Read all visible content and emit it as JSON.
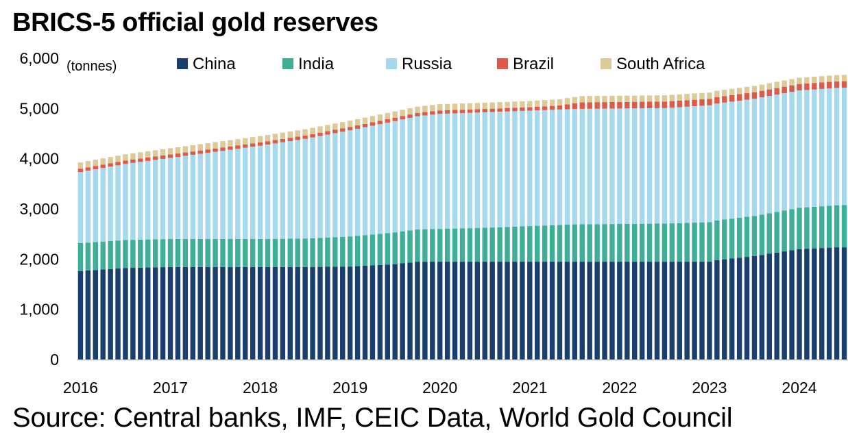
{
  "title": "BRICS-5 official gold reserves",
  "source": "Source: Central banks, IMF, CEIC Data, World Gold Council",
  "chart_data": {
    "type": "bar",
    "stacked": true,
    "unit_label": "(tonnes)",
    "ylim": [
      0,
      6000
    ],
    "y_ticks": [
      {
        "value": 0,
        "label": "0"
      },
      {
        "value": 1000,
        "label": "1,000"
      },
      {
        "value": 2000,
        "label": "2,000"
      },
      {
        "value": 3000,
        "label": "3,000"
      },
      {
        "value": 4000,
        "label": "4,000"
      },
      {
        "value": 5000,
        "label": "5,000"
      },
      {
        "value": 6000,
        "label": "6,000"
      }
    ],
    "x_ticks": [
      "2016",
      "2017",
      "2018",
      "2019",
      "2020",
      "2021",
      "2022",
      "2023",
      "2024"
    ],
    "grid": false,
    "legend_position": "top",
    "periods": 103,
    "series": [
      {
        "name": "China",
        "color": "#1a3e6e",
        "anchors": [
          [
            0,
            1762
          ],
          [
            6,
            1823
          ],
          [
            12,
            1843
          ],
          [
            30,
            1843
          ],
          [
            36,
            1852
          ],
          [
            42,
            1900
          ],
          [
            45,
            1948
          ],
          [
            84,
            1948
          ],
          [
            85,
            1980
          ],
          [
            90,
            2060
          ],
          [
            96,
            2200
          ],
          [
            101,
            2235
          ],
          [
            102,
            2235
          ]
        ]
      },
      {
        "name": "India",
        "color": "#3fae97",
        "anchors": [
          [
            0,
            557
          ],
          [
            12,
            558
          ],
          [
            24,
            558
          ],
          [
            30,
            566
          ],
          [
            36,
            600
          ],
          [
            42,
            630
          ],
          [
            48,
            653
          ],
          [
            54,
            676
          ],
          [
            66,
            744
          ],
          [
            78,
            760
          ],
          [
            84,
            788
          ],
          [
            90,
            800
          ],
          [
            96,
            822
          ],
          [
            102,
            841
          ]
        ]
      },
      {
        "name": "Russia",
        "color": "#a6d9ee",
        "anchors": [
          [
            0,
            1415
          ],
          [
            12,
            1615
          ],
          [
            24,
            1857
          ],
          [
            36,
            2113
          ],
          [
            42,
            2219
          ],
          [
            48,
            2292
          ],
          [
            54,
            2299
          ],
          [
            66,
            2298
          ],
          [
            72,
            2299
          ],
          [
            78,
            2299
          ],
          [
            84,
            2326
          ],
          [
            90,
            2333
          ],
          [
            96,
            2335
          ],
          [
            102,
            2336
          ]
        ]
      },
      {
        "name": "Brazil",
        "color": "#de5a48",
        "anchors": [
          [
            0,
            67
          ],
          [
            60,
            67
          ],
          [
            64,
            80
          ],
          [
            67,
            130
          ],
          [
            102,
            130
          ]
        ]
      },
      {
        "name": "South Africa",
        "color": "#dccb98",
        "anchors": [
          [
            0,
            125
          ],
          [
            102,
            125
          ]
        ]
      }
    ]
  }
}
